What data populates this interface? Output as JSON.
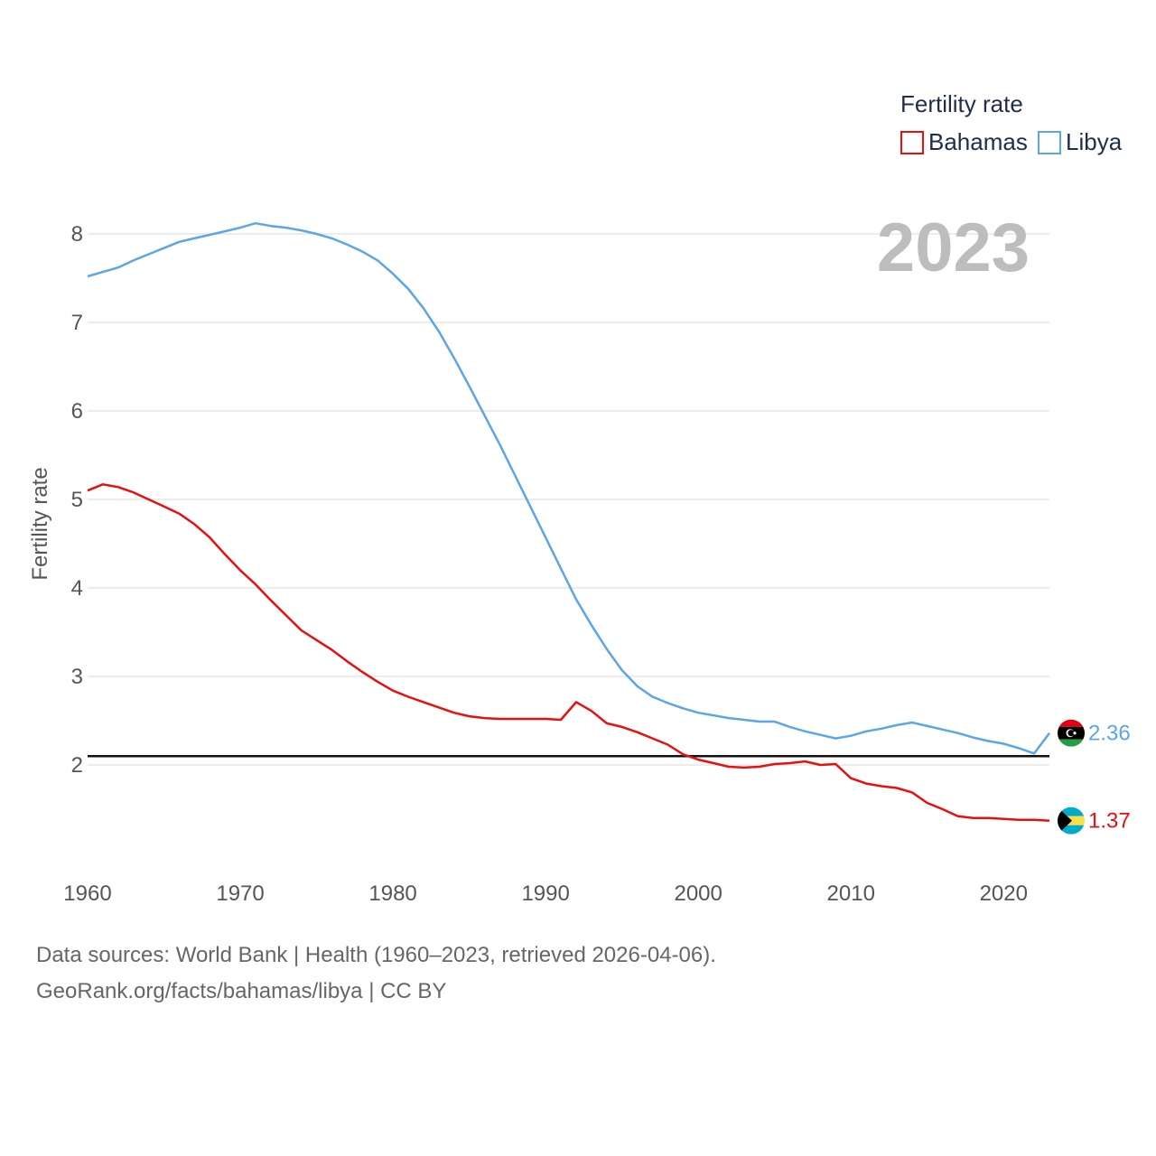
{
  "chart_data": {
    "type": "line",
    "title": "",
    "legend_title": "Fertility rate",
    "ylabel": "Fertility rate",
    "xlabel": "",
    "current_year_label": "2023",
    "xlim": [
      1960,
      2023
    ],
    "ylim": [
      1.0,
      8.3
    ],
    "yticks": [
      2,
      3,
      4,
      5,
      6,
      7,
      8
    ],
    "xticks": [
      1960,
      1970,
      1980,
      1990,
      2000,
      2010,
      2020
    ],
    "reference_line": 2.1,
    "x": [
      1960,
      1961,
      1962,
      1963,
      1964,
      1965,
      1966,
      1967,
      1968,
      1969,
      1970,
      1971,
      1972,
      1973,
      1974,
      1975,
      1976,
      1977,
      1978,
      1979,
      1980,
      1981,
      1982,
      1983,
      1984,
      1985,
      1986,
      1987,
      1988,
      1989,
      1990,
      1991,
      1992,
      1993,
      1994,
      1995,
      1996,
      1997,
      1998,
      1999,
      2000,
      2001,
      2002,
      2003,
      2004,
      2005,
      2006,
      2007,
      2008,
      2009,
      2010,
      2011,
      2012,
      2013,
      2014,
      2015,
      2016,
      2017,
      2018,
      2019,
      2020,
      2021,
      2022,
      2023
    ],
    "series": [
      {
        "name": "Bahamas",
        "color": "#e8100f",
        "end_label": "1.37",
        "flag": "bahamas-flag-icon",
        "values": [
          5.1,
          5.17,
          5.14,
          5.08,
          5.0,
          4.92,
          4.84,
          4.72,
          4.57,
          4.38,
          4.2,
          4.04,
          3.86,
          3.69,
          3.52,
          3.41,
          3.3,
          3.17,
          3.05,
          2.94,
          2.84,
          2.77,
          2.71,
          2.65,
          2.59,
          2.55,
          2.53,
          2.52,
          2.52,
          2.52,
          2.52,
          2.51,
          2.71,
          2.61,
          2.47,
          2.43,
          2.37,
          2.3,
          2.23,
          2.12,
          2.06,
          2.02,
          1.98,
          1.97,
          1.98,
          2.01,
          2.02,
          2.04,
          2.0,
          2.01,
          1.85,
          1.79,
          1.76,
          1.74,
          1.69,
          1.57,
          1.5,
          1.42,
          1.4,
          1.4,
          1.39,
          1.38,
          1.38,
          1.37
        ]
      },
      {
        "name": "Libya",
        "color": "#5ba5e8",
        "end_label": "2.36",
        "flag": "libya-flag-icon",
        "values": [
          7.52,
          7.57,
          7.62,
          7.7,
          7.77,
          7.84,
          7.91,
          7.95,
          7.99,
          8.03,
          8.07,
          8.12,
          8.09,
          8.07,
          8.04,
          8.0,
          7.95,
          7.88,
          7.8,
          7.7,
          7.55,
          7.38,
          7.16,
          6.9,
          6.6,
          6.28,
          5.95,
          5.62,
          5.27,
          4.92,
          4.57,
          4.22,
          3.87,
          3.58,
          3.31,
          3.07,
          2.89,
          2.77,
          2.7,
          2.64,
          2.59,
          2.56,
          2.53,
          2.51,
          2.49,
          2.49,
          2.43,
          2.38,
          2.34,
          2.3,
          2.33,
          2.38,
          2.41,
          2.45,
          2.48,
          2.44,
          2.4,
          2.36,
          2.31,
          2.27,
          2.24,
          2.19,
          2.13,
          2.36
        ]
      }
    ]
  },
  "footer": {
    "line1": "Data sources: World Bank | Health (1960–2023, retrieved 2026-04-06).",
    "line2": "GeoRank.org/facts/bahamas/libya | CC BY"
  }
}
